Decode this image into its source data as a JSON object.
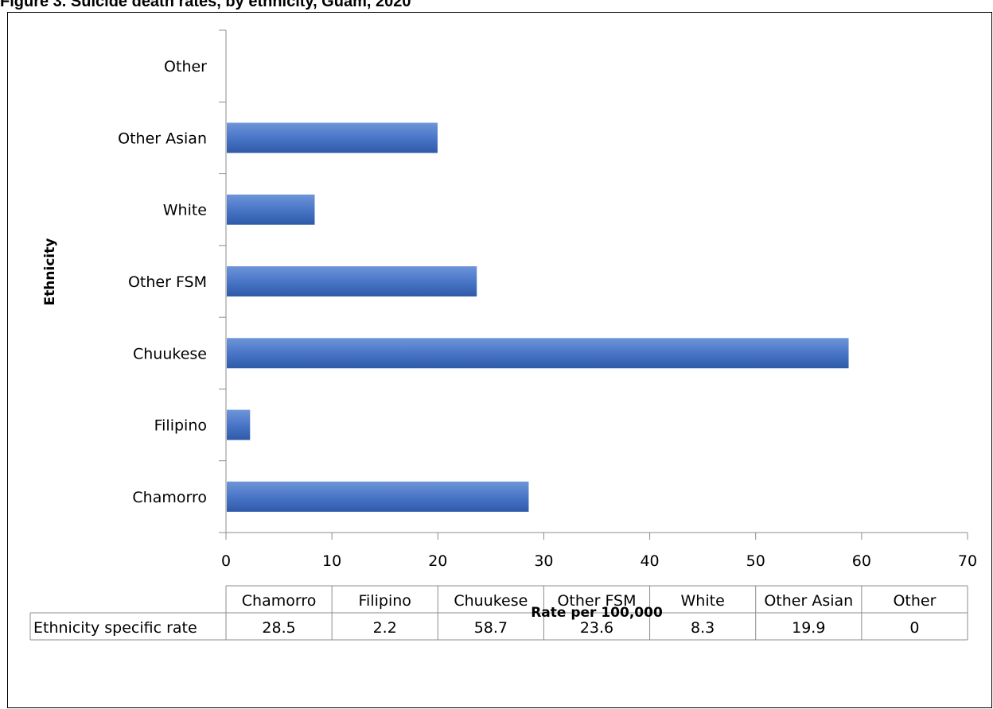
{
  "title": "Figure 3. Suicide death rates, by ethnicity, Guam, 2020",
  "chart_data": {
    "type": "bar",
    "orientation": "horizontal",
    "categories": [
      "Chamorro",
      "Filipino",
      "Chuukese",
      "Other FSM",
      "White",
      "Other Asian",
      "Other"
    ],
    "series": [
      {
        "name": "Ethnicity specific rate",
        "values": [
          28.5,
          2.2,
          58.7,
          23.6,
          8.3,
          19.9,
          0
        ]
      }
    ],
    "xlabel": "Rate per 100,000",
    "ylabel": "Ethnicity",
    "xlim": [
      0,
      70
    ],
    "xticks": [
      0,
      10,
      20,
      30,
      40,
      50,
      60,
      70
    ],
    "grid": false,
    "legend": "none",
    "data_table": {
      "row_label": "Ethnicity specific rate",
      "values": [
        "28.5",
        "2.2",
        "58.7",
        "23.6",
        "8.3",
        "19.9",
        "0"
      ]
    },
    "bar_color": "#4472C4"
  }
}
